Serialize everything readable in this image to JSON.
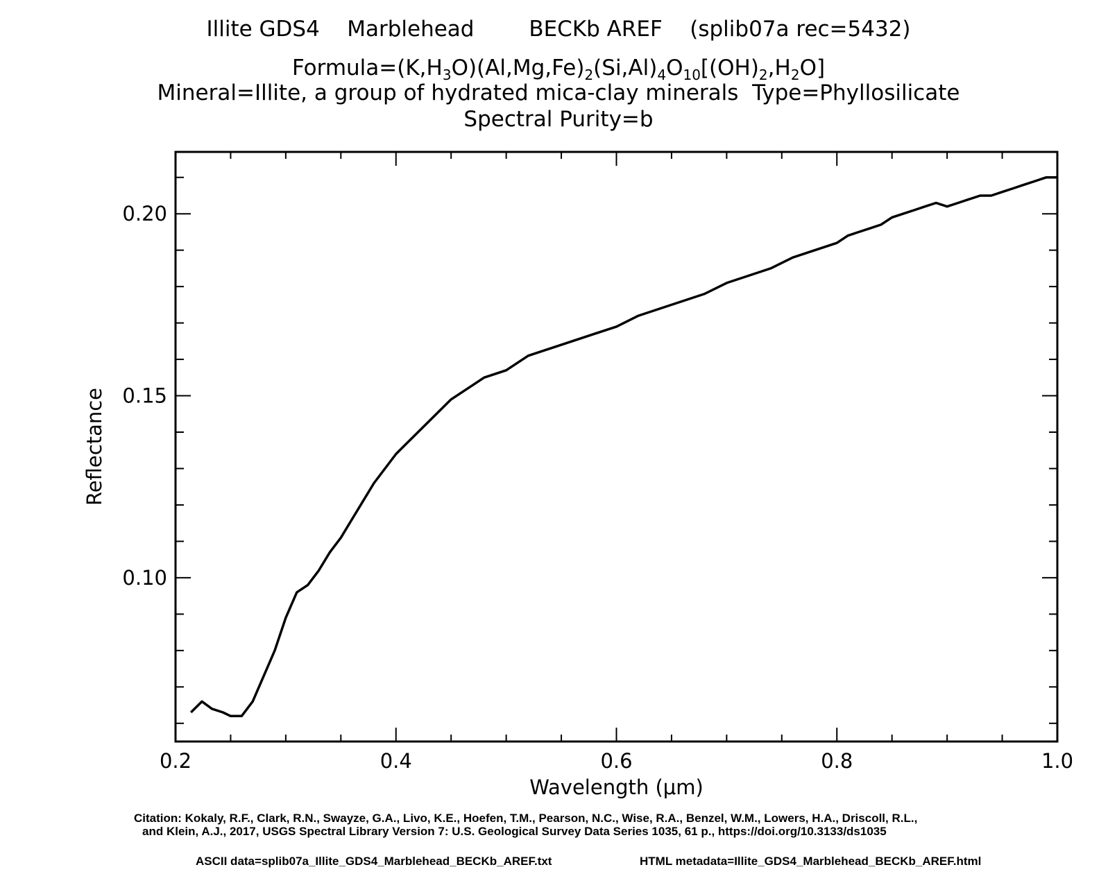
{
  "header": {
    "title": "Illite GDS4    Marblehead        BECKb AREF    (splib07a rec=5432)",
    "formula_prefix": "Formula=(K,H",
    "formula_parts": [
      "3",
      "O)(Al,Mg,Fe)",
      "2",
      "(Si,Al)",
      "4",
      "O",
      "10",
      "[(OH)",
      "2",
      ",H",
      "2",
      "O]"
    ],
    "mineral": "Mineral=Illite, a group of hydrated mica-clay minerals  Type=Phyllosilicate",
    "purity": "Spectral Purity=b"
  },
  "chart_data": {
    "type": "line",
    "xlabel": "Wavelength (μm)",
    "ylabel": "Reflectance",
    "xlim": [
      0.2,
      1.0
    ],
    "ylim": [
      0.055,
      0.217
    ],
    "x_ticks": [
      0.2,
      0.4,
      0.6,
      0.8,
      1.0
    ],
    "x_tick_labels": [
      "0.2",
      "0.4",
      "0.6",
      "0.8",
      "1.0"
    ],
    "y_ticks": [
      0.1,
      0.15,
      0.2
    ],
    "y_tick_labels": [
      "0.10",
      "0.15",
      "0.20"
    ],
    "grid": false,
    "series": [
      {
        "x": [
          0.214,
          0.224,
          0.233,
          0.243,
          0.25,
          0.26,
          0.27,
          0.28,
          0.29,
          0.3,
          0.31,
          0.32,
          0.33,
          0.34,
          0.35,
          0.36,
          0.37,
          0.38,
          0.39,
          0.4,
          0.41,
          0.42,
          0.43,
          0.44,
          0.45,
          0.46,
          0.47,
          0.48,
          0.49,
          0.5,
          0.52,
          0.54,
          0.56,
          0.58,
          0.6,
          0.62,
          0.64,
          0.66,
          0.68,
          0.7,
          0.72,
          0.74,
          0.76,
          0.78,
          0.8,
          0.81,
          0.82,
          0.83,
          0.84,
          0.85,
          0.86,
          0.87,
          0.88,
          0.89,
          0.9,
          0.91,
          0.92,
          0.93,
          0.94,
          0.95,
          0.96,
          0.97,
          0.98,
          0.99,
          1.0
        ],
        "y": [
          0.063,
          0.066,
          0.064,
          0.063,
          0.062,
          0.062,
          0.066,
          0.073,
          0.08,
          0.089,
          0.096,
          0.098,
          0.102,
          0.107,
          0.111,
          0.116,
          0.121,
          0.126,
          0.13,
          0.134,
          0.137,
          0.14,
          0.143,
          0.146,
          0.149,
          0.151,
          0.153,
          0.155,
          0.156,
          0.157,
          0.161,
          0.163,
          0.165,
          0.167,
          0.169,
          0.172,
          0.174,
          0.176,
          0.178,
          0.181,
          0.183,
          0.185,
          0.188,
          0.19,
          0.192,
          0.194,
          0.195,
          0.196,
          0.197,
          0.199,
          0.2,
          0.201,
          0.202,
          0.203,
          0.202,
          0.203,
          0.204,
          0.205,
          0.205,
          0.206,
          0.207,
          0.208,
          0.209,
          0.21,
          0.21
        ]
      }
    ]
  },
  "footer": {
    "citation_line1": "Citation: Kokaly, R.F., Clark, R.N., Swayze, G.A., Livo, K.E., Hoefen, T.M., Pearson, N.C., Wise, R.A., Benzel, W.M., Lowers, H.A., Driscoll, R.L.,",
    "citation_line2": "and Klein, A.J., 2017, USGS Spectral Library Version 7: U.S. Geological Survey Data Series 1035, 61 p., https://doi.org/10.3133/ds1035",
    "ascii": "ASCII data=splib07a_Illite_GDS4_Marblehead_BECKb_AREF.txt",
    "html_meta": "HTML metadata=Illite_GDS4_Marblehead_BECKb_AREF.html"
  }
}
